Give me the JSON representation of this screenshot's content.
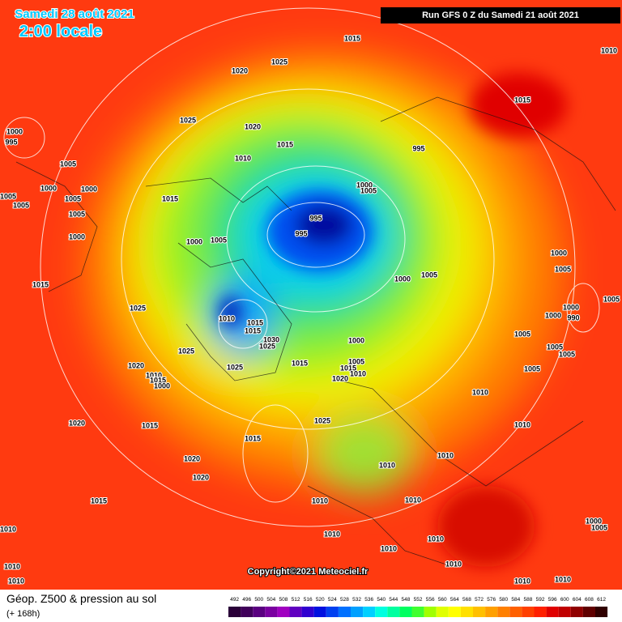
{
  "header": {
    "date": "Samedi 28 août 2021",
    "time": "2:00 locale",
    "run": "Run GFS 0 Z du Samedi 21 août 2021"
  },
  "copyright": "Copyright©2021 Meteociel.fr",
  "legend": {
    "title": "Géop. Z500 & pression au sol",
    "lead": "(+ 168h)",
    "labels": [
      492,
      496,
      500,
      504,
      508,
      512,
      516,
      520,
      524,
      528,
      532,
      536,
      540,
      544,
      548,
      552,
      556,
      560,
      564,
      568,
      572,
      576,
      580,
      584,
      588,
      592,
      596,
      600,
      604,
      608,
      612
    ],
    "colors": [
      "#2a0038",
      "#40005a",
      "#5a0080",
      "#7a00a0",
      "#a000c0",
      "#6000c0",
      "#3000d0",
      "#0010e0",
      "#0040f0",
      "#0070ff",
      "#00a0ff",
      "#00d0ff",
      "#00ffe0",
      "#00ffa0",
      "#00ff60",
      "#40ff30",
      "#a0ff00",
      "#e0ff00",
      "#ffff00",
      "#ffe000",
      "#ffc000",
      "#ffa000",
      "#ff8000",
      "#ff6000",
      "#ff4000",
      "#ff2000",
      "#e00000",
      "#c00000",
      "#900000",
      "#600000",
      "#300000"
    ]
  },
  "isobar_labels": [
    1015,
    1025,
    1020,
    1010,
    1015,
    1025,
    1020,
    1000,
    995,
    1015,
    995,
    1010,
    1005,
    1000,
    1005,
    1000,
    1005,
    1005,
    1015,
    1000,
    1005,
    1005,
    995,
    995,
    1000,
    1000,
    1005,
    1000,
    1005,
    1005,
    1000,
    1015,
    1005,
    1000,
    1025,
    1000,
    990,
    1010,
    1015,
    1015,
    1030,
    1025,
    1005,
    1000,
    1025,
    1005,
    1005,
    1015,
    1005,
    1025,
    1020,
    1015,
    1010,
    1020,
    1005,
    1010,
    1015,
    1000,
    1010,
    1025,
    1015,
    1020,
    1010,
    1015,
    1010,
    1010,
    1020,
    1020,
    1015,
    1010,
    1010,
    1000,
    1005,
    1010,
    1010,
    1010,
    1010,
    1010,
    1010,
    1010,
    1010,
    1010
  ]
}
